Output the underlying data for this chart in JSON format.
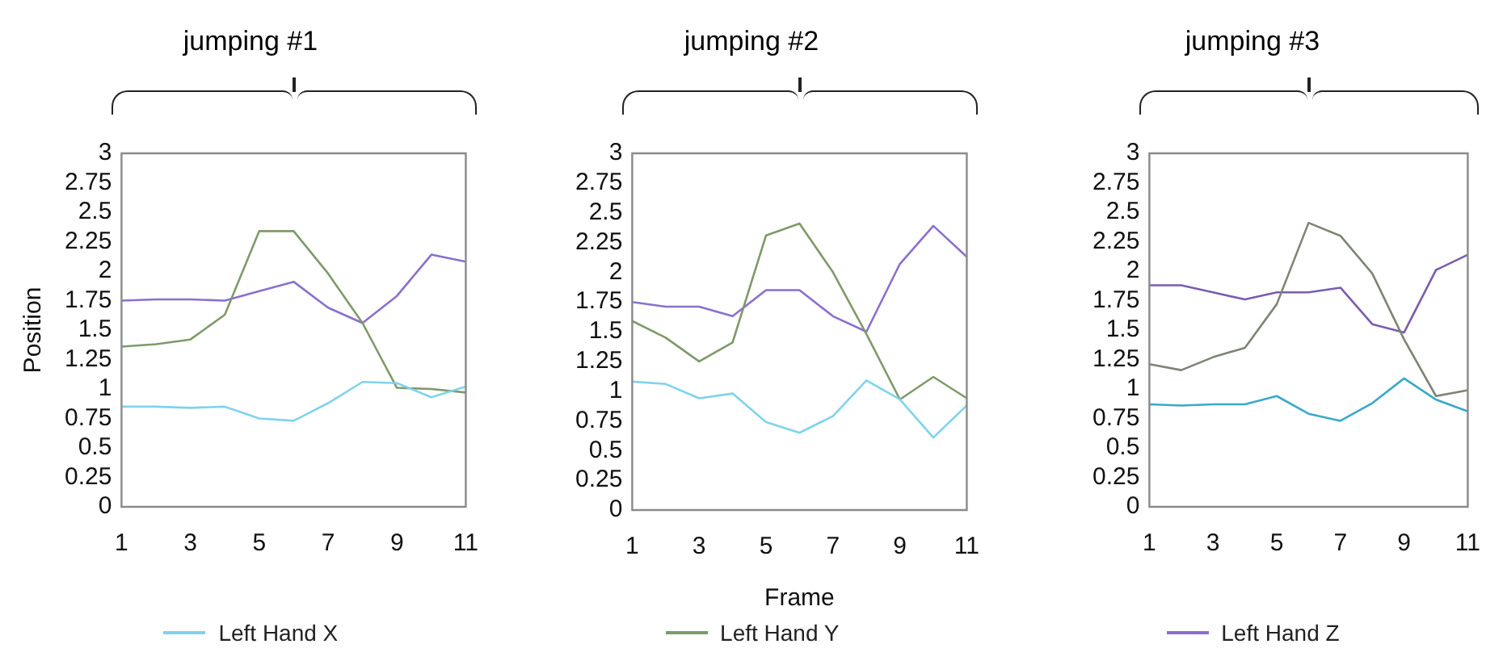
{
  "chart_data": [
    {
      "type": "line",
      "title": "jumping #1",
      "ylabel": "Position",
      "categories": [
        "1",
        null,
        "3",
        null,
        "5",
        null,
        "7",
        null,
        "9",
        null,
        "11"
      ],
      "ylim": [
        0,
        3
      ],
      "yticks": [
        0,
        0.25,
        0.5,
        0.75,
        1,
        1.25,
        1.5,
        1.75,
        2,
        2.25,
        2.5,
        2.75,
        3
      ],
      "grid": false,
      "marker": "none",
      "legend": "bottom",
      "series": [
        {
          "name": "Left Hand X",
          "color": "#7fd3ec",
          "values": [
            0.85,
            0.85,
            0.84,
            0.85,
            0.75,
            0.73,
            0.88,
            1.06,
            1.05,
            0.93,
            1.02
          ]
        },
        {
          "name": "Left Hand Y",
          "color": "#7f9a6a",
          "values": [
            1.36,
            1.38,
            1.42,
            1.63,
            2.34,
            2.34,
            1.98,
            1.56,
            1.01,
            1.0,
            0.97
          ]
        },
        {
          "name": "Left Hand Z",
          "color": "#8b6fcf",
          "values": [
            1.75,
            1.76,
            1.76,
            1.75,
            1.83,
            1.91,
            1.69,
            1.56,
            1.79,
            2.14,
            2.08
          ]
        }
      ]
    },
    {
      "type": "line",
      "title": "jumping #2",
      "xlabel": "Frame",
      "categories": [
        "1",
        null,
        "3",
        null,
        "5",
        null,
        "7",
        null,
        "9",
        null,
        "11"
      ],
      "ylim": [
        0,
        3
      ],
      "yticks": [
        0,
        0.25,
        0.5,
        0.75,
        1,
        1.25,
        1.5,
        1.75,
        2,
        2.25,
        2.5,
        2.75,
        3
      ],
      "grid": false,
      "marker": "none",
      "series": [
        {
          "color": "#7fd3ec",
          "values": [
            1.08,
            1.06,
            0.94,
            0.98,
            0.74,
            0.65,
            0.79,
            1.09,
            0.93,
            0.61,
            0.88
          ]
        },
        {
          "color": "#7f9a6a",
          "values": [
            1.59,
            1.45,
            1.25,
            1.41,
            2.31,
            2.41,
            2.0,
            1.48,
            0.93,
            1.12,
            0.94
          ]
        },
        {
          "color": "#8b6fcf",
          "values": [
            1.75,
            1.71,
            1.71,
            1.63,
            1.85,
            1.85,
            1.63,
            1.5,
            2.07,
            2.39,
            2.13
          ]
        }
      ]
    },
    {
      "type": "line",
      "title": "jumping #3",
      "categories": [
        "1",
        null,
        "3",
        null,
        "5",
        null,
        "7",
        null,
        "9",
        null,
        "11"
      ],
      "ylim": [
        0,
        3
      ],
      "yticks": [
        0,
        0.25,
        0.5,
        0.75,
        1,
        1.25,
        1.5,
        1.75,
        2,
        2.25,
        2.5,
        2.75,
        3
      ],
      "grid": false,
      "marker": "none",
      "series": [
        {
          "color": "#3aa9c9",
          "values": [
            0.87,
            0.86,
            0.87,
            0.87,
            0.94,
            0.79,
            0.73,
            0.88,
            1.09,
            0.91,
            0.81
          ]
        },
        {
          "color": "#7d8575",
          "values": [
            1.21,
            1.16,
            1.27,
            1.35,
            1.72,
            2.41,
            2.3,
            1.98,
            1.42,
            0.94,
            0.99
          ]
        },
        {
          "color": "#7a5cb0",
          "values": [
            1.88,
            1.88,
            1.82,
            1.76,
            1.82,
            1.82,
            1.86,
            1.55,
            1.48,
            2.01,
            2.14
          ]
        }
      ]
    }
  ]
}
